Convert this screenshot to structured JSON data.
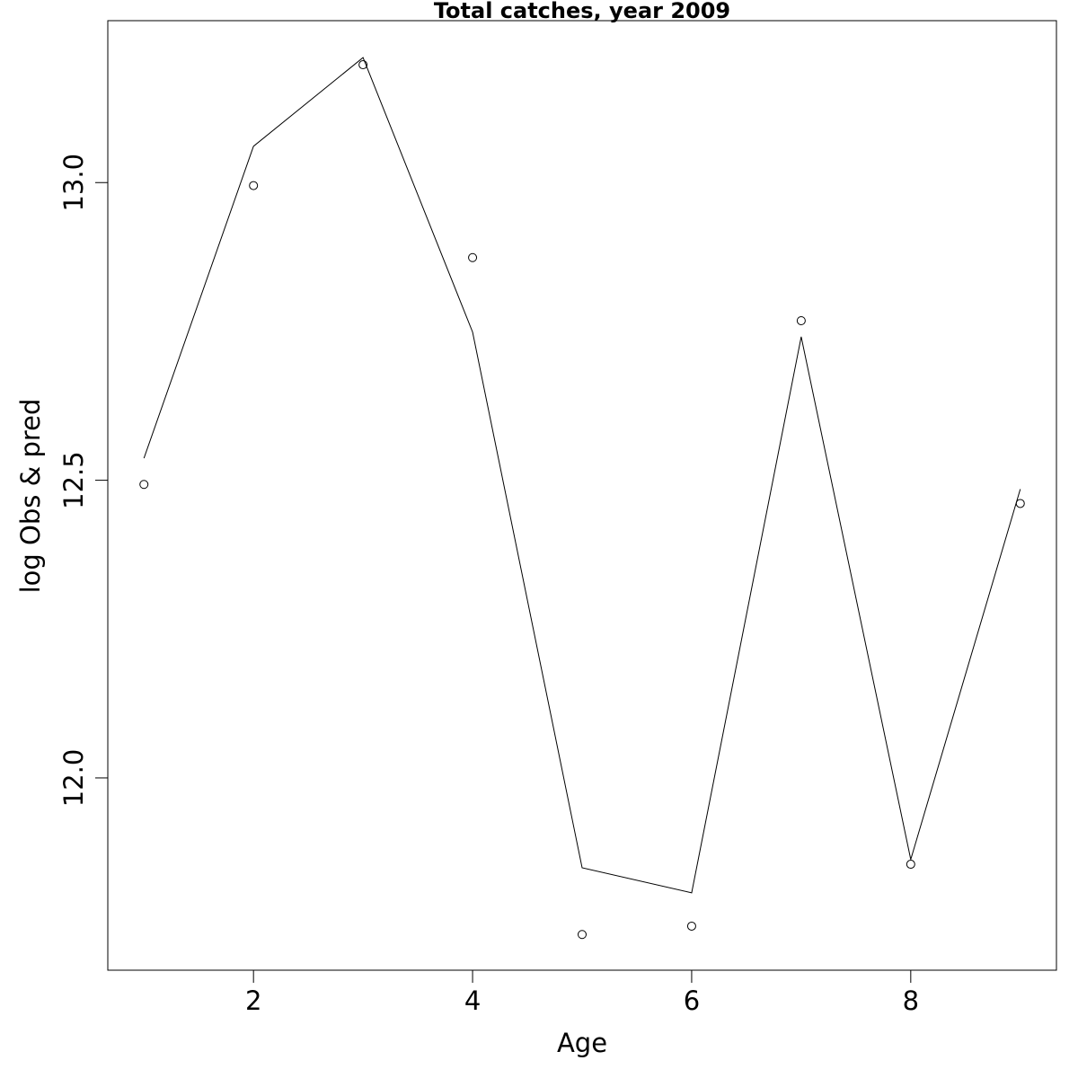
{
  "chart_data": {
    "type": "line",
    "title": "Total catches, year 2009",
    "xlabel": "Age",
    "ylabel": "log Obs & pred",
    "xlim": [
      0.67,
      9.33
    ],
    "ylim": [
      11.677,
      13.272
    ],
    "x_ticks": [
      2,
      4,
      6,
      8
    ],
    "y_ticks": [
      12.0,
      12.5,
      13.0
    ],
    "x_tick_labels": [
      "2",
      "4",
      "6",
      "8"
    ],
    "y_tick_labels": [
      "12.0",
      "12.5",
      "13.0"
    ],
    "grid": false,
    "series": [
      {
        "kind": "points",
        "x": [
          1,
          2,
          3,
          4,
          5,
          6,
          7,
          8,
          9
        ],
        "y": [
          12.493,
          12.995,
          13.198,
          12.874,
          11.737,
          11.751,
          12.768,
          11.855,
          12.461
        ]
      },
      {
        "kind": "line",
        "x": [
          1,
          2,
          3,
          4,
          5,
          6,
          7,
          8,
          9
        ],
        "y": [
          12.537,
          13.061,
          13.21,
          12.749,
          11.849,
          11.807,
          12.741,
          11.863,
          12.485
        ]
      }
    ]
  }
}
